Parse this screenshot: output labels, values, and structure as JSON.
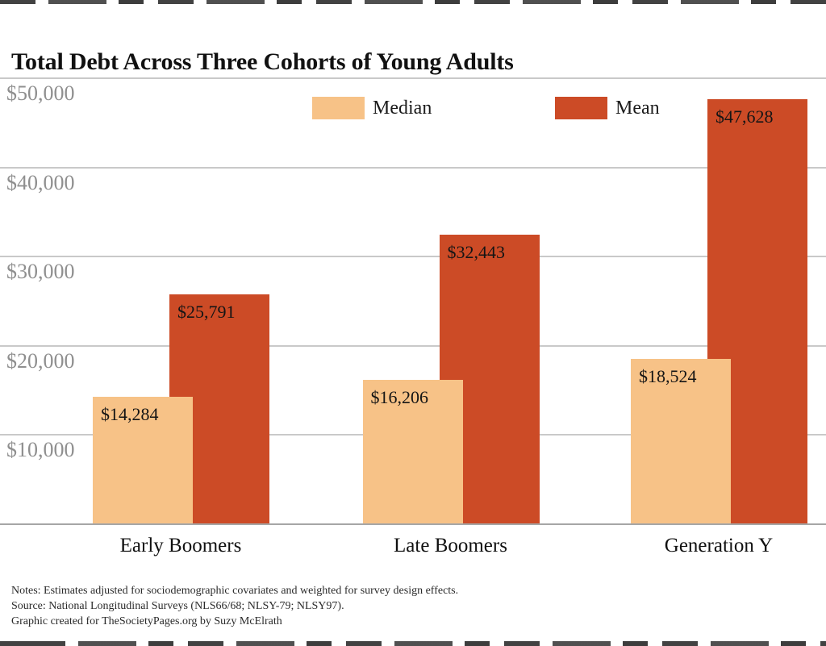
{
  "page": {
    "title": "Total Debt Across Three Cohorts of Young Adults"
  },
  "legend": [
    {
      "label": "Median",
      "color": "#F7C287"
    },
    {
      "label": "Mean",
      "color": "#CC4B26"
    }
  ],
  "chart_data": {
    "type": "bar",
    "title": "Total Debt Across Three Cohorts of Young Adults",
    "categories": [
      "Early Boomers",
      "Late Boomers",
      "Generation Y"
    ],
    "series": [
      {
        "name": "Median",
        "color": "#F7C287",
        "values": [
          14284,
          16206,
          18524
        ],
        "labels": [
          "$14,284",
          "$16,206",
          "$18,524"
        ]
      },
      {
        "name": "Mean",
        "color": "#CC4B26",
        "values": [
          25791,
          32443,
          47628
        ],
        "labels": [
          "$25,791",
          "$32,443",
          "$47,628"
        ]
      }
    ],
    "xlabel": "",
    "ylabel": "",
    "ylim": [
      0,
      50000
    ],
    "yticks": [
      {
        "value": 50000,
        "label": "$50,000"
      },
      {
        "value": 40000,
        "label": "$40,000"
      },
      {
        "value": 30000,
        "label": "$30,000"
      },
      {
        "value": 20000,
        "label": "$20,000"
      },
      {
        "value": 10000,
        "label": "$10,000"
      }
    ],
    "grid": true,
    "legend_position": "top-center",
    "bar_value_labels_inside": true
  },
  "notes": {
    "lines": [
      "Notes: Estimates adjusted for sociodemographic covariates and weighted for survey design effects.",
      "Source: National Longitudinal Surveys (NLS66/68; NLSY-79; NLSY97).",
      "Graphic created for TheSocietyPages.org by Suzy McElrath"
    ]
  }
}
